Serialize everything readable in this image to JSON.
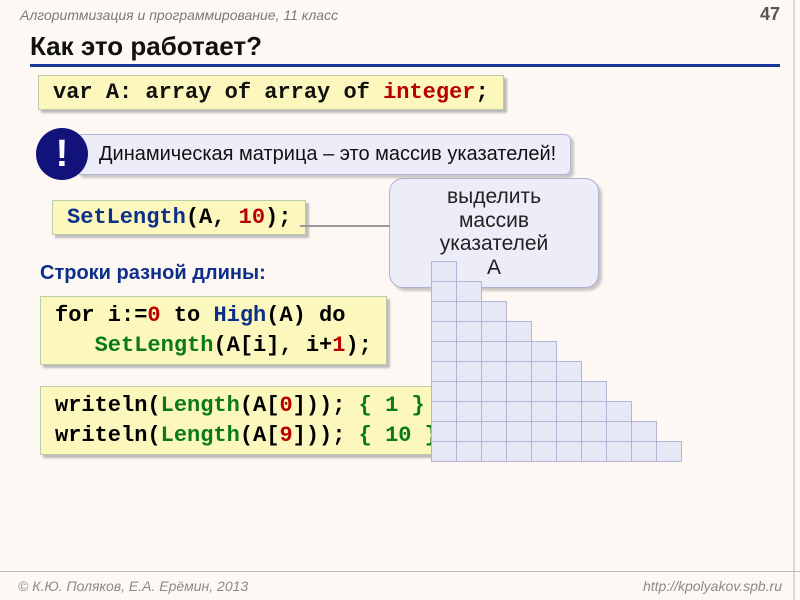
{
  "header": {
    "subject": "Алгоритмизация и программирование, 11 класс",
    "page": "47"
  },
  "title": "Как это работает?",
  "code1": {
    "t1": "var ",
    "t2": "A: ",
    "t3": "array of array of ",
    "t4": "integer",
    "t5": ";"
  },
  "excl": {
    "mark": "!",
    "text": "Динамическая матрица – это  массив указателей!"
  },
  "setlen": {
    "p1": "SetLength",
    "p2": "(A, ",
    "p3": "10",
    "p4": ");"
  },
  "bubble": {
    "l1": "выделить",
    "l2": "массив",
    "l3": "указателей",
    "l4": "A"
  },
  "subtitle": "Строки разной длины:",
  "forbox": {
    "l1a": "for i:=",
    "l1b": "0",
    "l1c": " to ",
    "l1d": "High",
    "l1e": "(A) do",
    "l2a": "   ",
    "l2b": "SetLength",
    "l2c": "(A[i], i+",
    "l2d": "1",
    "l2e": ");"
  },
  "writebox": {
    "l1a": "writeln(",
    "l1b": "Length",
    "l1c": "(A[",
    "l1d": "0",
    "l1e": "])); ",
    "l1f": "{ 1 }",
    "l2a": "writeln(",
    "l2b": "Length",
    "l2c": "(A[",
    "l2d": "9",
    "l2e": "])); ",
    "l2f": "{ 10 }"
  },
  "staircase": {
    "rows": 10
  },
  "footer": {
    "left": "© К.Ю. Поляков, Е.А. Ерёмин, 2013",
    "right": "http://kpolyakov.spb.ru"
  },
  "colors": {
    "numeric": "#b80000",
    "func_blue": "#0d2f8a",
    "func_green": "#0a7a14",
    "code_bg": "#fbf7bd",
    "callout_bg": "#ecedf9",
    "page_bg": "#fdf8f4"
  }
}
